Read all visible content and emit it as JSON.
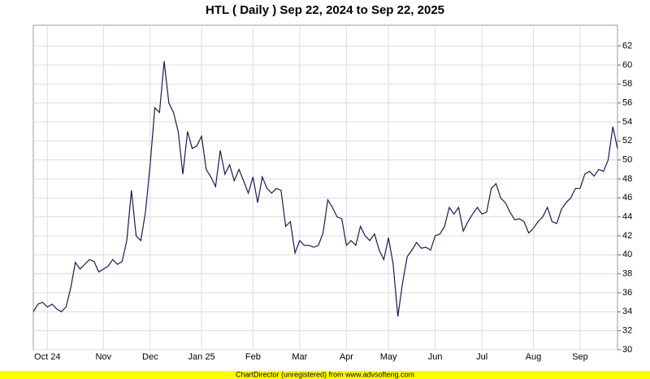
{
  "chart_data": {
    "type": "line",
    "title": "HTL ( Daily ) Sep 22, 2024 to Sep 22, 2025",
    "categories": [
      null,
      null,
      null,
      "Oct 24",
      null,
      null,
      null,
      null,
      null,
      null,
      null,
      null,
      null,
      null,
      null,
      "Nov",
      null,
      null,
      null,
      null,
      null,
      null,
      null,
      null,
      null,
      "Dec",
      null,
      null,
      null,
      null,
      null,
      null,
      null,
      null,
      null,
      null,
      "Jan 25",
      null,
      null,
      null,
      null,
      null,
      null,
      null,
      null,
      null,
      null,
      "Feb",
      null,
      null,
      null,
      null,
      null,
      null,
      null,
      null,
      null,
      "Mar",
      null,
      null,
      null,
      null,
      null,
      null,
      null,
      null,
      null,
      "Apr",
      null,
      null,
      null,
      null,
      null,
      null,
      null,
      null,
      "May",
      null,
      null,
      null,
      null,
      null,
      null,
      null,
      null,
      null,
      "Jun",
      null,
      null,
      null,
      null,
      null,
      null,
      null,
      null,
      null,
      "Jul",
      null,
      null,
      null,
      null,
      null,
      null,
      null,
      null,
      null,
      null,
      "Aug",
      null,
      null,
      null,
      null,
      null,
      null,
      null,
      null,
      null,
      "Sep",
      null,
      null,
      null,
      null,
      null,
      null,
      null,
      null
    ],
    "series": [
      {
        "color": "#1a1a4e",
        "values": [
          34.0,
          34.8,
          35.0,
          34.5,
          34.8,
          34.3,
          34.0,
          34.5,
          36.5,
          39.2,
          38.5,
          39.0,
          39.5,
          39.3,
          38.2,
          38.5,
          38.8,
          39.5,
          39.0,
          39.3,
          41.5,
          46.8,
          42.0,
          41.5,
          44.5,
          49.5,
          55.5,
          55.0,
          60.4,
          56.0,
          55.0,
          53.0,
          48.5,
          53.0,
          51.2,
          51.5,
          52.5,
          49.0,
          48.2,
          47.2,
          51.0,
          48.5,
          49.5,
          47.8,
          49.0,
          47.8,
          46.5,
          48.2,
          45.5,
          48.2,
          47.0,
          46.5,
          47.0,
          46.8,
          43.0,
          43.5,
          40.2,
          41.5,
          41.0,
          41.0,
          40.8,
          41.0,
          42.3,
          45.8,
          45.0,
          44.0,
          43.8,
          41.0,
          41.5,
          41.0,
          43.0,
          42.0,
          41.5,
          42.2,
          40.5,
          39.5,
          41.8,
          39.0,
          33.5,
          37.0,
          39.8,
          40.5,
          41.3,
          40.7,
          40.8,
          40.5,
          42.0,
          42.2,
          43.0,
          45.0,
          44.3,
          45.0,
          42.5,
          43.5,
          44.3,
          45.0,
          44.3,
          44.5,
          47.0,
          47.5,
          46.0,
          45.5,
          44.5,
          43.7,
          43.8,
          43.5,
          42.3,
          42.8,
          43.5,
          44.0,
          45.0,
          43.5,
          43.3,
          44.8,
          45.5,
          46.0,
          47.0,
          47.0,
          48.5,
          48.8,
          48.3,
          49.0,
          48.8,
          50.0,
          53.5,
          51.2
        ]
      }
    ],
    "ylim": [
      30,
      64.2
    ],
    "yticks": [
      30,
      32,
      34,
      36,
      38,
      40,
      42,
      44,
      46,
      48,
      50,
      52,
      54,
      56,
      58,
      60,
      62
    ],
    "grid": true
  },
  "footer": "ChartDirector (unregistered) from www.advsofteng.com"
}
